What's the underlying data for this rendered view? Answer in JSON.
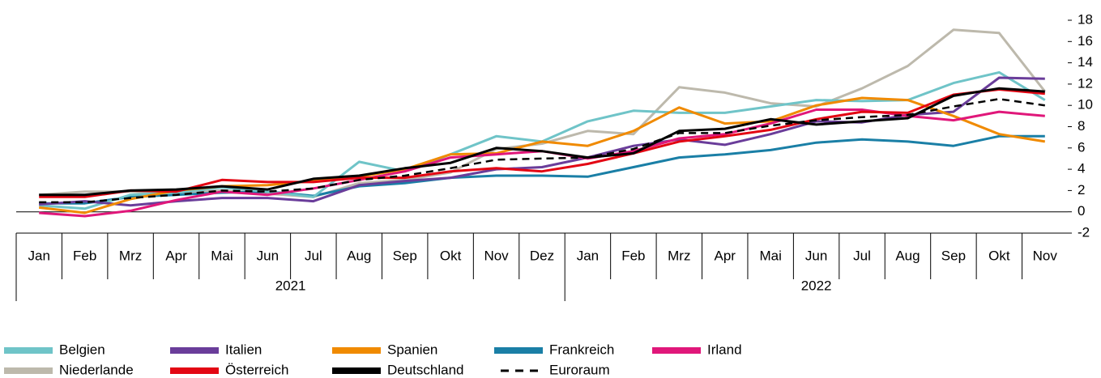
{
  "chart_data": {
    "type": "line",
    "groups": [
      {
        "label": "2021",
        "categories": [
          "Jan",
          "Feb",
          "Mrz",
          "Apr",
          "Mai",
          "Jun",
          "Jul",
          "Aug",
          "Sep",
          "Okt",
          "Nov",
          "Dez"
        ]
      },
      {
        "label": "2022",
        "categories": [
          "Jan",
          "Feb",
          "Mrz",
          "Apr",
          "Mai",
          "Jun",
          "Jul",
          "Aug",
          "Sep",
          "Okt",
          "Nov"
        ]
      }
    ],
    "ylim": [
      -2,
      18
    ],
    "yticks": [
      -2,
      0,
      2,
      4,
      6,
      8,
      10,
      12,
      14,
      16,
      18
    ],
    "series": [
      {
        "name": "Belgien",
        "color": "#6fc4c8",
        "values": [
          0.6,
          0.3,
          1.6,
          1.8,
          2.3,
          1.9,
          1.4,
          4.7,
          3.8,
          5.4,
          7.1,
          6.6,
          8.5,
          9.5,
          9.3,
          9.3,
          9.9,
          10.5,
          10.4,
          10.5,
          12.1,
          13.1,
          10.5
        ]
      },
      {
        "name": "Italien",
        "color": "#6a3d9a",
        "values": [
          0.7,
          1.0,
          0.6,
          1.0,
          1.3,
          1.3,
          1.0,
          2.5,
          2.9,
          3.2,
          4.0,
          4.2,
          5.1,
          6.2,
          6.8,
          6.3,
          7.3,
          8.5,
          8.4,
          9.1,
          9.4,
          12.6,
          12.5
        ]
      },
      {
        "name": "Spanien",
        "color": "#f08a00",
        "values": [
          0.4,
          -0.1,
          1.2,
          2.0,
          2.4,
          2.5,
          2.9,
          3.3,
          4.0,
          5.4,
          5.5,
          6.6,
          6.2,
          7.6,
          9.8,
          8.3,
          8.5,
          10.0,
          10.7,
          10.5,
          9.0,
          7.3,
          6.6
        ]
      },
      {
        "name": "Frankreich",
        "color": "#1a7fa6",
        "values": [
          0.8,
          0.8,
          1.4,
          1.6,
          1.8,
          1.9,
          1.5,
          2.4,
          2.7,
          3.2,
          3.4,
          3.4,
          3.3,
          4.2,
          5.1,
          5.4,
          5.8,
          6.5,
          6.8,
          6.6,
          6.2,
          7.1,
          7.1
        ]
      },
      {
        "name": "Irland",
        "color": "#e0177a",
        "values": [
          -0.1,
          -0.4,
          0.1,
          1.1,
          1.9,
          1.6,
          2.2,
          3.0,
          3.8,
          5.1,
          5.4,
          5.7,
          5.0,
          5.7,
          6.9,
          7.3,
          8.3,
          9.6,
          9.6,
          9.0,
          8.6,
          9.4,
          9.0
        ]
      },
      {
        "name": "Niederlande",
        "color": "#bdb9ac",
        "values": [
          1.6,
          1.9,
          1.9,
          1.7,
          2.0,
          1.7,
          1.4,
          2.7,
          3.0,
          3.7,
          5.9,
          6.4,
          7.6,
          7.3,
          11.7,
          11.2,
          10.2,
          9.9,
          11.6,
          13.7,
          17.1,
          16.8,
          11.3
        ]
      },
      {
        "name": "Österreich",
        "color": "#e30613",
        "values": [
          1.4,
          1.4,
          2.0,
          1.9,
          3.0,
          2.8,
          2.8,
          3.2,
          3.2,
          3.8,
          4.1,
          3.8,
          4.5,
          5.5,
          6.6,
          7.1,
          7.7,
          8.7,
          9.4,
          9.3,
          11.0,
          11.5,
          11.1
        ]
      },
      {
        "name": "Deutschland",
        "color": "#000000",
        "values": [
          1.6,
          1.6,
          2.0,
          2.1,
          2.4,
          2.1,
          3.1,
          3.4,
          4.1,
          4.6,
          6.0,
          5.7,
          5.1,
          5.5,
          7.6,
          7.8,
          8.7,
          8.2,
          8.5,
          8.8,
          10.9,
          11.6,
          11.3
        ]
      },
      {
        "name": "Euroraum",
        "color": "#000000",
        "dashed": true,
        "values": [
          0.9,
          0.9,
          1.3,
          1.6,
          2.0,
          1.9,
          2.2,
          3.0,
          3.4,
          4.1,
          4.9,
          5.0,
          5.1,
          5.9,
          7.4,
          7.4,
          8.1,
          8.6,
          8.9,
          9.1,
          9.9,
          10.6,
          10.0
        ]
      }
    ]
  }
}
